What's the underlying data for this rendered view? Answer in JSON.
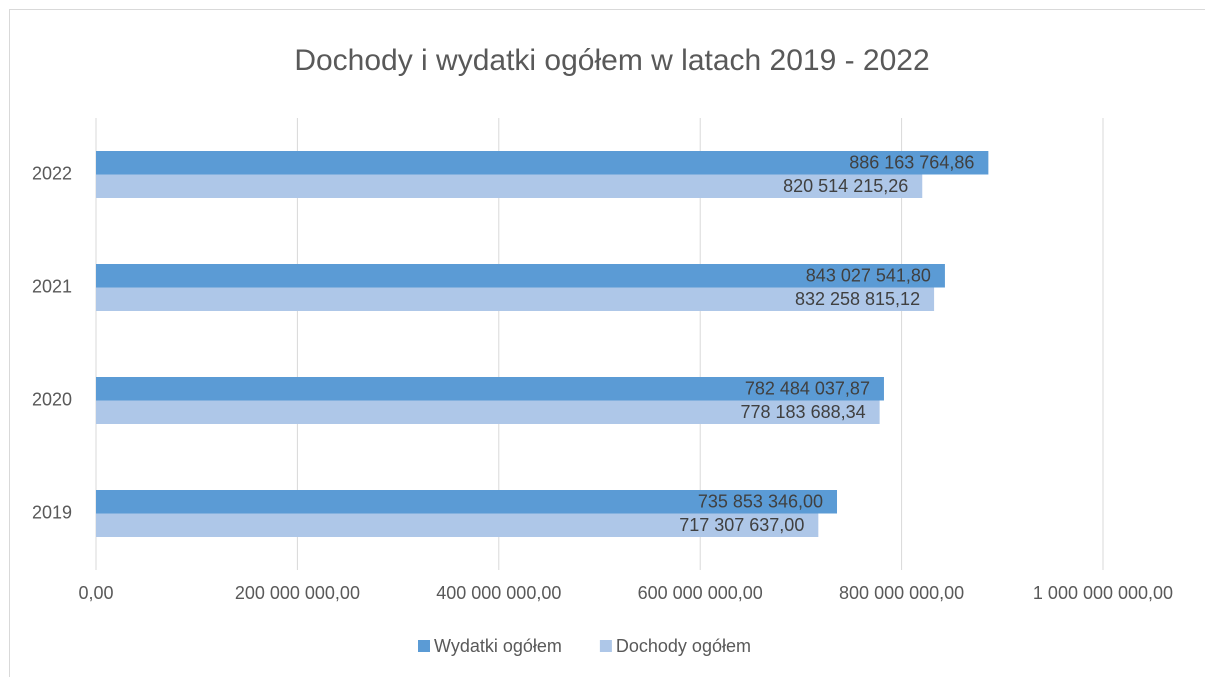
{
  "chart_data": {
    "type": "hbar",
    "title": "Dochody i wydatki ogółem w latach 2019 - 2022",
    "categories": [
      "2019",
      "2020",
      "2021",
      "2022"
    ],
    "series": [
      {
        "name": "Wydatki ogółem",
        "color": "#5b9bd5",
        "values": [
          735853346.0,
          782484037.87,
          843027541.8,
          886163764.86
        ],
        "value_labels": [
          "735 853 346,00",
          "782 484 037,87",
          "843 027 541,80",
          "886 163 764,86"
        ]
      },
      {
        "name": "Dochody ogółem",
        "color": "#aec7e8",
        "values": [
          717307637.0,
          778183688.34,
          832258815.12,
          820514215.26
        ],
        "value_labels": [
          "717 307 637,00",
          "778 183 688,34",
          "832 258 815,12",
          "820 514 215,26"
        ]
      }
    ],
    "xlim": [
      0,
      1000000000
    ],
    "xticks": [
      {
        "value": 0,
        "label": "0,00"
      },
      {
        "value": 200000000,
        "label": "200 000 000,00"
      },
      {
        "value": 400000000,
        "label": "400 000 000,00"
      },
      {
        "value": 600000000,
        "label": "600 000 000,00"
      },
      {
        "value": 800000000,
        "label": "800 000 000,00"
      },
      {
        "value": 1000000000,
        "label": "1 000 000 000,00"
      }
    ],
    "grid": true,
    "legend": "bottom"
  }
}
